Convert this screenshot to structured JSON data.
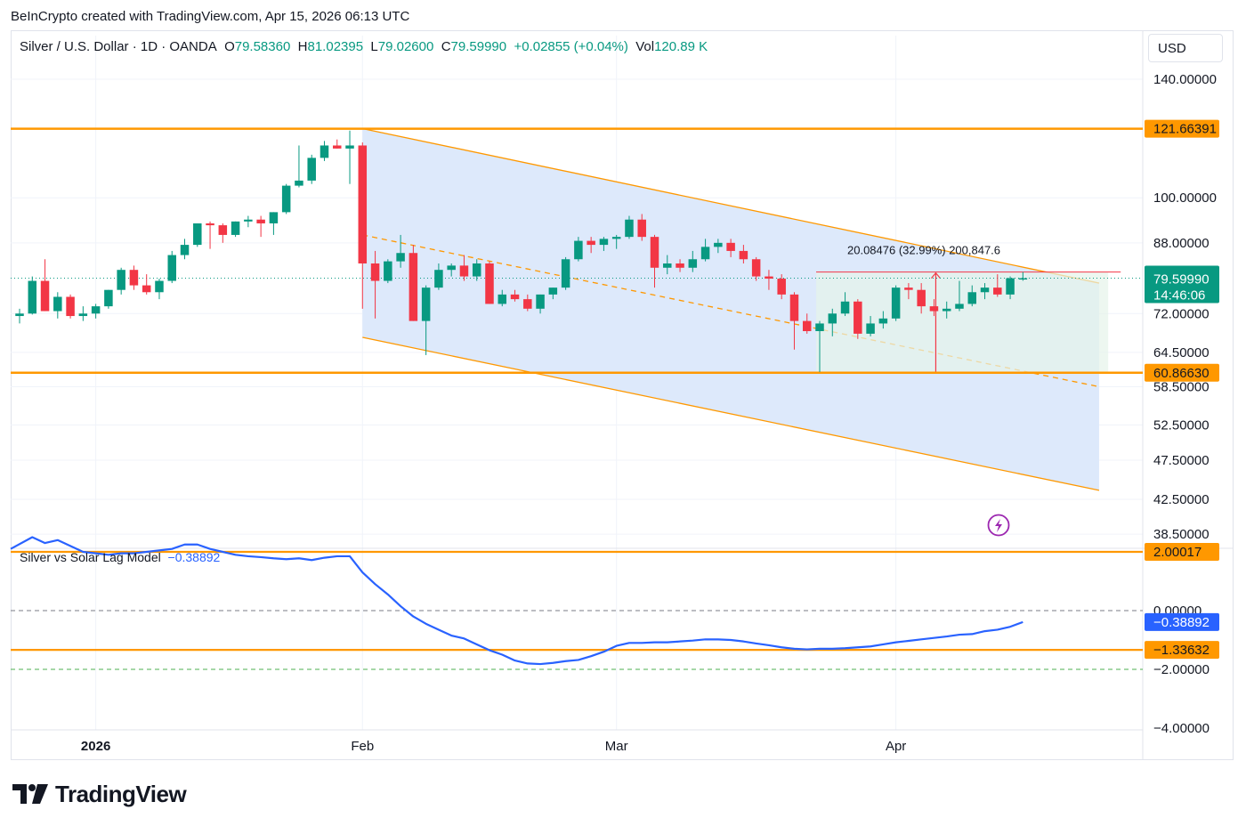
{
  "header": {
    "credit": "BeInCrypto created with TradingView.com, Apr 15, 2026 06:13 UTC"
  },
  "legend": {
    "symbol": "Silver / U.S. Dollar · 1D · OANDA",
    "o_label": "O",
    "o_value": "79.58360",
    "h_label": "H",
    "h_value": "81.02395",
    "l_label": "L",
    "l_value": "79.02600",
    "c_label": "C",
    "c_value": "79.59990",
    "change": "+0.02855 (+0.04%)",
    "vol_label": "Vol",
    "vol_value": "120.89 K"
  },
  "currency_button": "USD",
  "indicator": {
    "name": "Silver vs Solar Lag Model",
    "value": "−0.38892"
  },
  "measure_label": "20.08476 (32.99%) 200,847.6",
  "brand": {
    "logo_text": "TradingView"
  },
  "colors": {
    "up": "#089981",
    "down": "#f23645",
    "orange": "#ff9800",
    "channel_fill": "#dbe8fb",
    "measure_fill": "#e6f4ea",
    "indicator_line": "#2962ff",
    "current_price": "#089981"
  },
  "chart_data": [
    {
      "type": "candlestick",
      "title": "Silver / U.S. Dollar · 1D · OANDA",
      "x_labels": [
        {
          "label": "2026",
          "bar": 6
        },
        {
          "label": "Feb",
          "bar": 27
        },
        {
          "label": "Mar",
          "bar": 47
        },
        {
          "label": "Apr",
          "bar": 69
        }
      ],
      "y_scale": "log",
      "y_ticks": [
        "140.00000",
        "100.00000",
        "88.00000",
        "72.00000",
        "64.50000",
        "58.50000",
        "52.50000",
        "47.50000",
        "42.50000",
        "38.50000"
      ],
      "y_tick_values": [
        140,
        100,
        88,
        72,
        64.5,
        58.5,
        52.5,
        47.5,
        42.5,
        38.5
      ],
      "ohlc": [
        [
          71.5,
          73.0,
          70.0,
          72.0
        ],
        [
          72.0,
          80.0,
          71.8,
          79.0
        ],
        [
          79.0,
          84.0,
          72.5,
          72.5
        ],
        [
          72.5,
          76.5,
          71.0,
          75.5
        ],
        [
          75.5,
          76.0,
          71.0,
          71.5
        ],
        [
          71.5,
          73.5,
          70.5,
          72.0
        ],
        [
          72.0,
          74.0,
          71.0,
          73.5
        ],
        [
          73.5,
          77.0,
          73.0,
          77.0
        ],
        [
          77.0,
          82.0,
          76.0,
          81.5
        ],
        [
          81.5,
          82.5,
          77.0,
          78.0
        ],
        [
          78.0,
          80.5,
          76.0,
          76.5
        ],
        [
          76.5,
          79.5,
          75.0,
          79.0
        ],
        [
          79.0,
          86.0,
          78.5,
          85.0
        ],
        [
          85.0,
          89.0,
          84.0,
          87.5
        ],
        [
          87.5,
          93.0,
          87.0,
          93.0
        ],
        [
          93.0,
          93.5,
          86.5,
          92.5
        ],
        [
          92.5,
          93.0,
          88.0,
          90.0
        ],
        [
          90.0,
          93.5,
          89.5,
          93.5
        ],
        [
          93.5,
          95.0,
          92.0,
          94.0
        ],
        [
          94.0,
          95.0,
          89.5,
          93.0
        ],
        [
          93.0,
          96.0,
          90.0,
          96.0
        ],
        [
          96.0,
          104.0,
          95.5,
          103.5
        ],
        [
          103.5,
          116.0,
          103.0,
          105.0
        ],
        [
          105.0,
          113.0,
          104.0,
          112.0
        ],
        [
          112.0,
          117.5,
          111.0,
          116.0
        ],
        [
          116.0,
          118.0,
          115.0,
          115.0
        ],
        [
          115.0,
          121.0,
          104.0,
          116.0
        ],
        [
          116.0,
          117.0,
          73.0,
          83.0
        ],
        [
          83.0,
          86.0,
          71.0,
          79.0
        ],
        [
          79.0,
          84.0,
          78.5,
          83.5
        ],
        [
          83.5,
          90.0,
          82.0,
          85.5
        ],
        [
          85.5,
          87.5,
          70.5,
          70.5
        ],
        [
          70.5,
          78.0,
          64.0,
          77.5
        ],
        [
          77.5,
          83.0,
          77.0,
          81.5
        ],
        [
          81.5,
          83.0,
          80.0,
          82.5
        ],
        [
          82.5,
          85.0,
          79.0,
          80.0
        ],
        [
          80.0,
          84.0,
          79.0,
          83.0
        ],
        [
          83.0,
          83.5,
          74.0,
          74.0
        ],
        [
          74.0,
          77.0,
          73.5,
          76.0
        ],
        [
          76.0,
          77.0,
          74.5,
          75.0
        ],
        [
          75.0,
          76.0,
          72.5,
          73.0
        ],
        [
          73.0,
          76.0,
          72.0,
          76.0
        ],
        [
          76.0,
          77.5,
          75.0,
          77.5
        ],
        [
          77.5,
          84.5,
          77.0,
          84.0
        ],
        [
          84.0,
          89.5,
          83.5,
          88.5
        ],
        [
          88.5,
          89.5,
          85.5,
          87.5
        ],
        [
          87.5,
          89.5,
          86.0,
          89.0
        ],
        [
          89.0,
          90.0,
          86.5,
          89.5
        ],
        [
          89.5,
          95.0,
          89.0,
          94.0
        ],
        [
          94.0,
          95.5,
          88.5,
          89.5
        ],
        [
          89.5,
          90.0,
          77.5,
          82.0
        ],
        [
          82.0,
          85.0,
          80.5,
          83.0
        ],
        [
          83.0,
          84.0,
          81.0,
          82.0
        ],
        [
          82.0,
          86.0,
          81.0,
          84.0
        ],
        [
          84.0,
          89.0,
          83.5,
          87.0
        ],
        [
          87.0,
          89.0,
          85.5,
          88.0
        ],
        [
          88.0,
          89.0,
          84.5,
          86.0
        ],
        [
          86.0,
          87.5,
          83.0,
          84.0
        ],
        [
          84.0,
          84.5,
          79.0,
          80.0
        ],
        [
          80.0,
          81.5,
          77.0,
          79.5
        ],
        [
          79.5,
          80.5,
          75.0,
          76.0
        ],
        [
          76.0,
          76.5,
          65.0,
          70.5
        ],
        [
          70.5,
          72.0,
          68.0,
          68.5
        ],
        [
          68.5,
          70.5,
          61.0,
          70.0
        ],
        [
          70.0,
          73.0,
          67.5,
          72.0
        ],
        [
          72.0,
          76.5,
          71.5,
          74.5
        ],
        [
          74.5,
          75.0,
          67.0,
          68.0
        ],
        [
          68.0,
          71.5,
          67.5,
          70.0
        ],
        [
          70.0,
          72.5,
          69.0,
          71.0
        ],
        [
          71.0,
          78.0,
          70.5,
          77.5
        ],
        [
          77.5,
          78.5,
          75.0,
          77.0
        ],
        [
          77.0,
          78.5,
          72.0,
          73.5
        ],
        [
          73.5,
          75.0,
          71.5,
          72.5
        ],
        [
          72.5,
          74.5,
          71.0,
          73.0
        ],
        [
          73.0,
          79.0,
          72.5,
          74.0
        ],
        [
          74.0,
          78.0,
          73.5,
          76.5
        ],
        [
          76.5,
          78.5,
          75.0,
          77.5
        ],
        [
          77.5,
          80.5,
          75.5,
          76.0
        ],
        [
          76.0,
          80.0,
          75.0,
          79.6
        ],
        [
          79.58,
          81.02,
          79.03,
          79.6
        ]
      ],
      "horizontal_levels": [
        "121.66391",
        "60.86630"
      ],
      "horizontal_level_values": [
        121.66391,
        60.8663
      ],
      "current_price": "79.59990",
      "countdown": "14:46:06",
      "channel": {
        "upper": {
          "from_bar": 27,
          "from": 121.7,
          "to_bar": 85,
          "to": 78.5
        },
        "lower": {
          "from_bar": 27,
          "from": 67.3,
          "to_bar": 85,
          "to": 43.6
        },
        "mid": {
          "from_bar": 27,
          "from": 90.0,
          "to_bar": 85,
          "to": 58.5
        }
      },
      "measure": {
        "from_bar": 63,
        "to_bar": 86,
        "low": 60.8663,
        "high": 81.0
      }
    },
    {
      "type": "line",
      "name": "Silver vs Solar Lag Model",
      "current_value": "−0.38892",
      "y_ticks": [
        "0.00000",
        "−2.00000",
        "−4.00000"
      ],
      "y_tick_values": [
        0,
        -2,
        -4
      ],
      "levels": [
        "2.00017",
        "−1.33632"
      ],
      "level_values": [
        2.00017,
        -1.33632
      ],
      "values": [
        2.1,
        2.5,
        2.3,
        2.4,
        2.2,
        2.0,
        1.95,
        1.9,
        1.95,
        1.95,
        2.0,
        2.05,
        2.1,
        2.25,
        2.25,
        2.1,
        2.0,
        1.9,
        1.85,
        1.82,
        1.78,
        1.75,
        1.78,
        1.72,
        1.8,
        1.85,
        1.85,
        1.3,
        0.9,
        0.55,
        0.15,
        -0.2,
        -0.45,
        -0.65,
        -0.85,
        -0.95,
        -1.15,
        -1.35,
        -1.5,
        -1.7,
        -1.8,
        -1.82,
        -1.78,
        -1.72,
        -1.68,
        -1.55,
        -1.4,
        -1.2,
        -1.1,
        -1.1,
        -1.08,
        -1.08,
        -1.05,
        -1.02,
        -0.98,
        -0.98,
        -1.0,
        -1.05,
        -1.12,
        -1.18,
        -1.25,
        -1.3,
        -1.32,
        -1.3,
        -1.3,
        -1.28,
        -1.25,
        -1.22,
        -1.15,
        -1.08,
        -1.03,
        -0.98,
        -0.93,
        -0.88,
        -0.82,
        -0.8,
        -0.7,
        -0.65,
        -0.55,
        -0.39
      ],
      "ylim": [
        -4.3,
        2.8
      ]
    }
  ]
}
